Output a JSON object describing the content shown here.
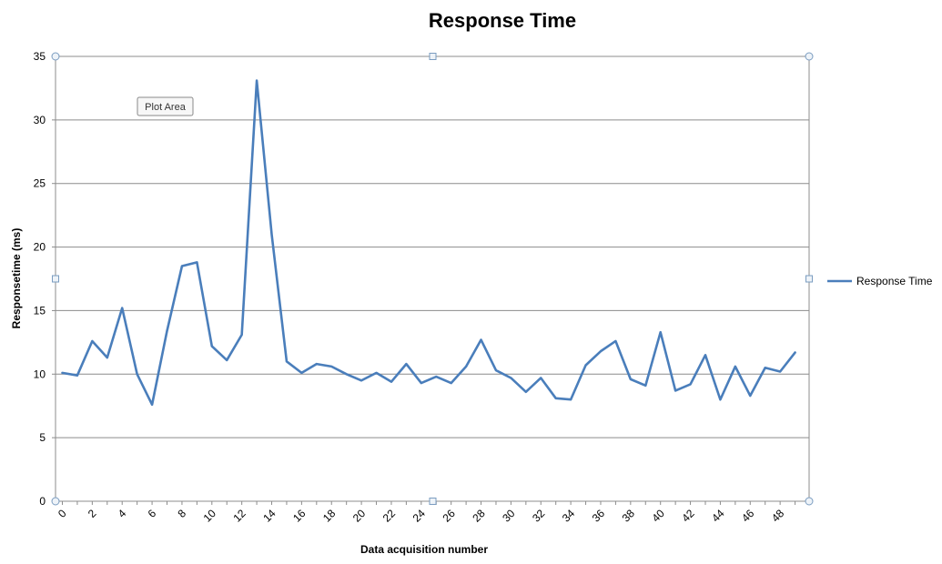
{
  "chart_data": {
    "type": "line",
    "title": "Response Time",
    "xlabel": "Data acquisition number",
    "ylabel": "Responsetime (ms)",
    "x": [
      0,
      1,
      2,
      3,
      4,
      5,
      6,
      7,
      8,
      9,
      10,
      11,
      12,
      13,
      14,
      15,
      16,
      17,
      18,
      19,
      20,
      21,
      22,
      23,
      24,
      25,
      26,
      27,
      28,
      29,
      30,
      31,
      32,
      33,
      34,
      35,
      36,
      37,
      38,
      39,
      40,
      41,
      42,
      43,
      44,
      45,
      46,
      47,
      48,
      49
    ],
    "x_ticks": [
      0,
      2,
      4,
      6,
      8,
      10,
      12,
      14,
      16,
      18,
      20,
      22,
      24,
      26,
      28,
      30,
      32,
      34,
      36,
      38,
      40,
      42,
      44,
      46,
      48
    ],
    "xlim": [
      0,
      49
    ],
    "ylim": [
      0,
      35
    ],
    "y_ticks": [
      0,
      5,
      10,
      15,
      20,
      25,
      30,
      35
    ],
    "grid": "horizontal",
    "legend_position": "right",
    "series": [
      {
        "name": "Response Time",
        "color": "#4a7ebb",
        "values": [
          10.1,
          9.9,
          12.6,
          11.3,
          15.2,
          10.0,
          7.6,
          13.4,
          18.5,
          18.8,
          12.2,
          11.1,
          13.1,
          33.1,
          21.0,
          11.0,
          10.1,
          10.8,
          10.6,
          10.0,
          9.5,
          10.1,
          9.4,
          10.8,
          9.3,
          9.8,
          9.3,
          10.6,
          12.7,
          10.3,
          9.7,
          8.6,
          9.7,
          8.1,
          8.0,
          10.7,
          11.8,
          12.6,
          9.6,
          9.1,
          13.3,
          8.7,
          9.2,
          11.5,
          8.0,
          10.6,
          8.3,
          10.5,
          10.2,
          11.7
        ]
      }
    ]
  },
  "tooltip": {
    "label": "Plot Area"
  }
}
